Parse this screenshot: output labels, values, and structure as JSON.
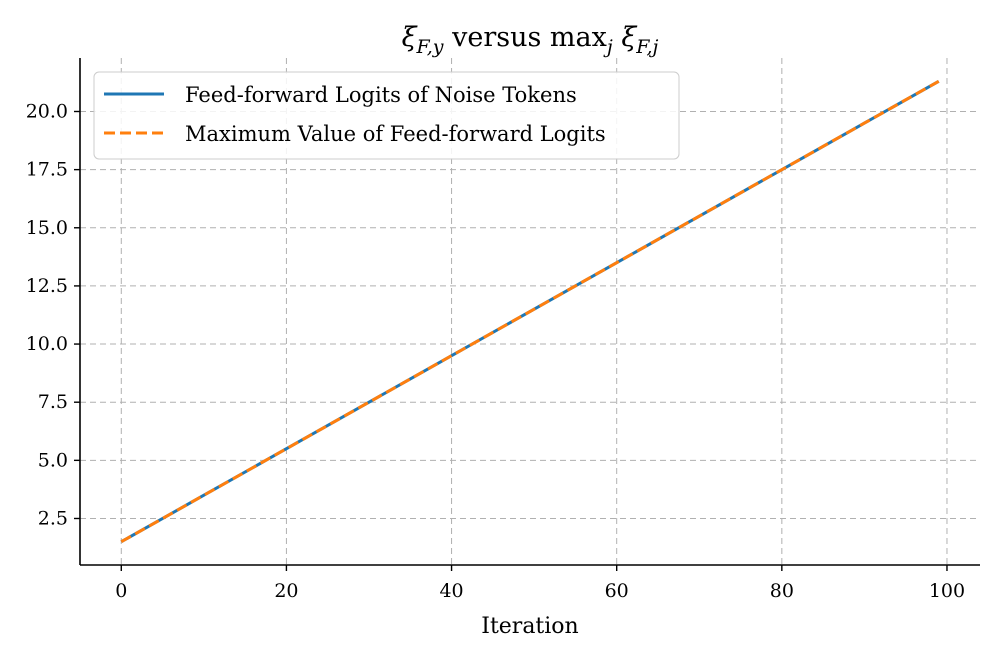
{
  "chart_data": {
    "type": "line",
    "title": {
      "prefix_sym": "ξ",
      "prefix_sub": "F,y",
      "middle": " versus ",
      "max_word": "max",
      "max_sub": "j",
      "suffix_sym": "ξ",
      "suffix_sub": "F,j"
    },
    "xlabel": "Iteration",
    "ylabel": "",
    "xlim": [
      -5,
      104
    ],
    "ylim": [
      0.5,
      22.3
    ],
    "xticks": [
      0,
      20,
      40,
      60,
      80,
      100
    ],
    "xtick_labels": [
      "0",
      "20",
      "40",
      "60",
      "80",
      "100"
    ],
    "yticks": [
      2.5,
      5.0,
      7.5,
      10.0,
      12.5,
      15.0,
      17.5,
      20.0
    ],
    "ytick_labels": [
      "2.5",
      "5.0",
      "7.5",
      "10.0",
      "12.5",
      "15.0",
      "17.5",
      "20.0"
    ],
    "grid": true,
    "legend_position": "top-left",
    "series": [
      {
        "name": "Feed-forward Logits of Noise Tokens",
        "color": "#1f77b4",
        "style": "solid",
        "x": [
          0,
          10,
          20,
          30,
          40,
          50,
          60,
          70,
          80,
          90,
          99
        ],
        "y": [
          1.5,
          3.5,
          5.5,
          7.5,
          9.5,
          11.5,
          13.5,
          15.5,
          17.5,
          19.5,
          21.3
        ]
      },
      {
        "name": "Maximum Value of Feed-forward Logits",
        "color": "#ff7f0e",
        "style": "dashed",
        "x": [
          0,
          10,
          20,
          30,
          40,
          50,
          60,
          70,
          80,
          90,
          99
        ],
        "y": [
          1.5,
          3.5,
          5.5,
          7.5,
          9.5,
          11.5,
          13.5,
          15.5,
          17.5,
          19.5,
          21.3
        ]
      }
    ]
  }
}
